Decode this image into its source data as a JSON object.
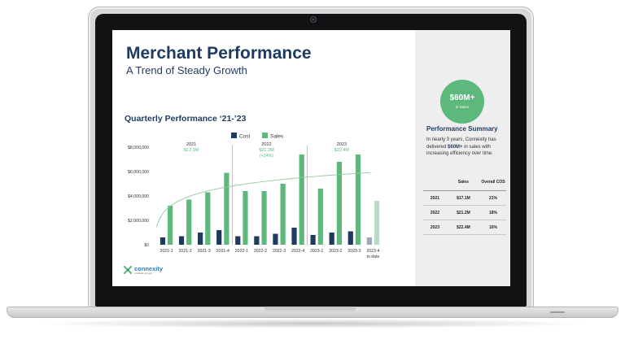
{
  "slide": {
    "title": "Merchant Performance",
    "subtitle": "A Trend of Steady Growth",
    "chart_title": "Quarterly Performance ‘21-’23"
  },
  "logo": {
    "name": "connexity",
    "subtext": "a Taboola company"
  },
  "summary": {
    "badge_value": "$60M+",
    "badge_label": "in Sales",
    "title": "Performance Summary",
    "text_before": "In nearly 3 years, Connexity has delivered ",
    "text_bold": "$60M+",
    "text_after": " in sales with increasing efficiency over time.",
    "table": {
      "headers": [
        "",
        "Sales",
        "Overall COS"
      ],
      "rows": [
        {
          "year": "2021",
          "sales": "$17.1M",
          "cos": "21%"
        },
        {
          "year": "2022",
          "sales": "$21.2M",
          "cos": "18%"
        },
        {
          "year": "2023",
          "sales": "$22.4M",
          "cos": "16%"
        }
      ]
    }
  },
  "colors": {
    "cost": "#1f3a5f",
    "sales": "#5db87c",
    "cost_partial": "#9aa8b8",
    "sales_partial": "#b7dcc3",
    "title": "#1f3a5f"
  },
  "chart_data": {
    "type": "bar",
    "title": "Quarterly Performance ‘21-’23",
    "categories": [
      "2021-1",
      "2021-2",
      "2021-3",
      "2021-4",
      "2022-1",
      "2022-2",
      "2022-3",
      "2022-4",
      "2023-1",
      "2023-2",
      "2023-3",
      "2023-4\nto date"
    ],
    "series": [
      {
        "name": "Cost",
        "values": [
          600000,
          700000,
          1000000,
          1200000,
          700000,
          700000,
          900000,
          1400000,
          800000,
          1000000,
          1100000,
          600000
        ]
      },
      {
        "name": "Sales",
        "values": [
          3200000,
          3700000,
          4300000,
          5900000,
          4400000,
          4400000,
          5000000,
          7400000,
          4600000,
          6800000,
          7400000,
          3600000
        ]
      }
    ],
    "partial_category": "2023-4\nto date",
    "y_ticks": [
      "$0",
      "$2,000,000",
      "$4,000,000",
      "$6,000,000",
      "$8,000,000"
    ],
    "ylim": [
      0,
      8000000
    ],
    "legend_position": "top",
    "trendline": "logarithmic",
    "year_annotations": [
      {
        "year": "2021",
        "value": "$17.1M",
        "note": ""
      },
      {
        "year": "2022",
        "value": "$21.2M",
        "note": "(+24%)"
      },
      {
        "year": "2023",
        "value": "$22.4M",
        "note": ""
      }
    ]
  }
}
